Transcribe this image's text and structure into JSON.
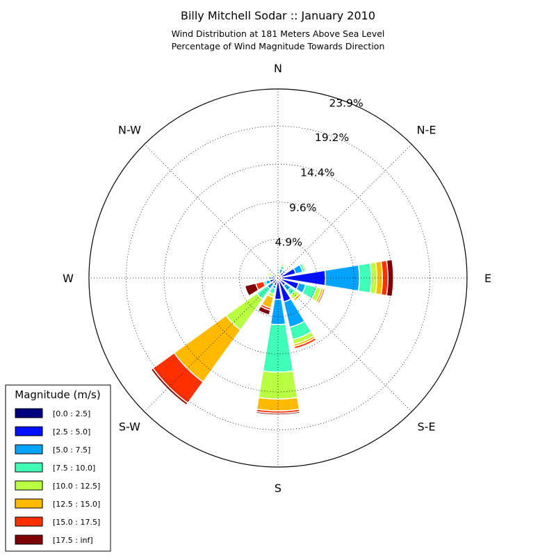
{
  "chart_data": {
    "type": "windrose",
    "title": "Billy Mitchell Sodar :: January 2010",
    "subtitle_lines": [
      "Wind Distribution at 181 Meters Above Sea Level",
      "Percentage of Wind Magnitude Towards Direction"
    ],
    "direction_labels": [
      "N",
      "N-E",
      "E",
      "S-E",
      "S",
      "S-W",
      "W",
      "N-W"
    ],
    "ring_values": [
      4.9,
      9.6,
      14.4,
      19.2,
      23.9
    ],
    "ring_labels": [
      "4.9%",
      "9.6%",
      "14.4%",
      "19.2%",
      "23.9%"
    ],
    "rmax": 23.9,
    "grid": true,
    "legend": {
      "title": "Magnitude (m/s)",
      "placement": "bottom-left",
      "bins": [
        "[0.0 : 2.5]",
        "[2.5 : 5.0]",
        "[5.0 : 7.5]",
        "[7.5 : 10.0]",
        "[10.0 : 12.5]",
        "[12.5 : 15.0]",
        "[15.0 : 17.5]",
        "[17.5 : inf]"
      ],
      "colors": [
        "#00007f",
        "#0010ff",
        "#00a4ff",
        "#40ffb7",
        "#b7ff40",
        "#ffb900",
        "#ff3000",
        "#7f0000"
      ]
    },
    "sectors": [
      {
        "direction_deg": 0,
        "values": [
          0.1,
          0.3,
          0.4,
          0.2,
          0.1,
          0.0,
          0.0,
          0.0
        ]
      },
      {
        "direction_deg": 22.5,
        "values": [
          0.1,
          0.5,
          0.6,
          0.4,
          0.2,
          0.0,
          0.0,
          0.0
        ]
      },
      {
        "direction_deg": 45,
        "values": [
          0.1,
          0.8,
          0.3,
          0.1,
          0.0,
          0.0,
          0.0,
          0.0
        ]
      },
      {
        "direction_deg": 67.5,
        "values": [
          0.2,
          2.1,
          0.9,
          0.3,
          0.2,
          0.0,
          0.0,
          0.0
        ]
      },
      {
        "direction_deg": 90,
        "values": [
          0.2,
          5.8,
          4.3,
          1.5,
          0.7,
          0.7,
          0.7,
          0.7
        ]
      },
      {
        "direction_deg": 112.5,
        "values": [
          0.2,
          2.5,
          0.9,
          1.4,
          0.6,
          0.3,
          0.2,
          0.0
        ]
      },
      {
        "direction_deg": 135,
        "values": [
          0.1,
          1.1,
          0.8,
          0.7,
          0.6,
          0.3,
          0.0,
          0.0
        ]
      },
      {
        "direction_deg": 157.5,
        "values": [
          0.1,
          3.0,
          3.3,
          1.6,
          0.6,
          0.3,
          0.3,
          0.0
        ]
      },
      {
        "direction_deg": 180,
        "values": [
          0.1,
          2.6,
          3.2,
          6.0,
          3.4,
          1.5,
          0.3,
          0.2
        ]
      },
      {
        "direction_deg": 202.5,
        "values": [
          0.1,
          0.9,
          0.4,
          0.7,
          0.4,
          1.4,
          0.3,
          0.6
        ]
      },
      {
        "direction_deg": 225,
        "values": [
          0.1,
          0.8,
          0.8,
          1.6,
          4.8,
          8.1,
          3.3,
          0.3
        ]
      },
      {
        "direction_deg": 247.5,
        "values": [
          0.1,
          1.0,
          0.5,
          0.3,
          0.0,
          0.0,
          1.0,
          1.4
        ]
      },
      {
        "direction_deg": 270,
        "values": [
          0.1,
          0.7,
          0.3,
          0.1,
          0.0,
          0.0,
          0.0,
          0.0
        ]
      },
      {
        "direction_deg": 292.5,
        "values": [
          0.1,
          0.6,
          0.2,
          0.1,
          0.3,
          0.1,
          0.0,
          0.0
        ]
      },
      {
        "direction_deg": 315,
        "values": [
          0.1,
          0.3,
          0.2,
          0.1,
          0.0,
          0.0,
          0.0,
          0.0
        ]
      },
      {
        "direction_deg": 337.5,
        "values": [
          0.1,
          0.2,
          0.3,
          0.1,
          0.0,
          0.0,
          0.0,
          0.0
        ]
      }
    ]
  }
}
